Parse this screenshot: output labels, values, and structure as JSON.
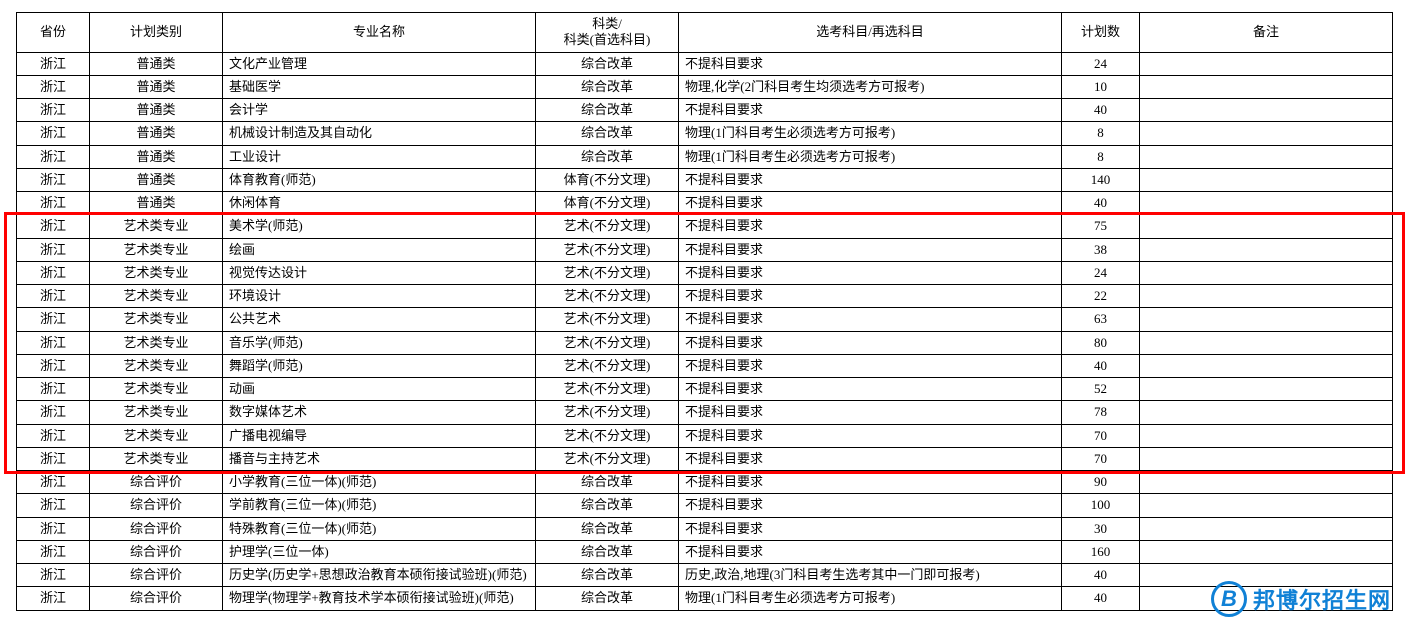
{
  "headers": {
    "province": "省份",
    "plan_type": "计划类别",
    "major": "专业名称",
    "subject": "科类/\n科类(首选科目)",
    "requirement": "选考科目/再选科目",
    "count": "计划数",
    "note": "备注"
  },
  "rows": [
    {
      "province": "浙江",
      "plan_type": "普通类",
      "major": "文化产业管理",
      "subject": "综合改革",
      "requirement": "不提科目要求",
      "count": "24",
      "note": ""
    },
    {
      "province": "浙江",
      "plan_type": "普通类",
      "major": "基础医学",
      "subject": "综合改革",
      "requirement": "物理,化学(2门科目考生均须选考方可报考)",
      "count": "10",
      "note": ""
    },
    {
      "province": "浙江",
      "plan_type": "普通类",
      "major": "会计学",
      "subject": "综合改革",
      "requirement": "不提科目要求",
      "count": "40",
      "note": ""
    },
    {
      "province": "浙江",
      "plan_type": "普通类",
      "major": "机械设计制造及其自动化",
      "subject": "综合改革",
      "requirement": "物理(1门科目考生必须选考方可报考)",
      "count": "8",
      "note": ""
    },
    {
      "province": "浙江",
      "plan_type": "普通类",
      "major": "工业设计",
      "subject": "综合改革",
      "requirement": "物理(1门科目考生必须选考方可报考)",
      "count": "8",
      "note": ""
    },
    {
      "province": "浙江",
      "plan_type": "普通类",
      "major": "体育教育(师范)",
      "subject": "体育(不分文理)",
      "requirement": "不提科目要求",
      "count": "140",
      "note": ""
    },
    {
      "province": "浙江",
      "plan_type": "普通类",
      "major": "休闲体育",
      "subject": "体育(不分文理)",
      "requirement": "不提科目要求",
      "count": "40",
      "note": ""
    },
    {
      "province": "浙江",
      "plan_type": "艺术类专业",
      "major": "美术学(师范)",
      "subject": "艺术(不分文理)",
      "requirement": "不提科目要求",
      "count": "75",
      "note": ""
    },
    {
      "province": "浙江",
      "plan_type": "艺术类专业",
      "major": "绘画",
      "subject": "艺术(不分文理)",
      "requirement": "不提科目要求",
      "count": "38",
      "note": ""
    },
    {
      "province": "浙江",
      "plan_type": "艺术类专业",
      "major": "视觉传达设计",
      "subject": "艺术(不分文理)",
      "requirement": "不提科目要求",
      "count": "24",
      "note": ""
    },
    {
      "province": "浙江",
      "plan_type": "艺术类专业",
      "major": "环境设计",
      "subject": "艺术(不分文理)",
      "requirement": "不提科目要求",
      "count": "22",
      "note": ""
    },
    {
      "province": "浙江",
      "plan_type": "艺术类专业",
      "major": "公共艺术",
      "subject": "艺术(不分文理)",
      "requirement": "不提科目要求",
      "count": "63",
      "note": ""
    },
    {
      "province": "浙江",
      "plan_type": "艺术类专业",
      "major": "音乐学(师范)",
      "subject": "艺术(不分文理)",
      "requirement": "不提科目要求",
      "count": "80",
      "note": ""
    },
    {
      "province": "浙江",
      "plan_type": "艺术类专业",
      "major": "舞蹈学(师范)",
      "subject": "艺术(不分文理)",
      "requirement": "不提科目要求",
      "count": "40",
      "note": ""
    },
    {
      "province": "浙江",
      "plan_type": "艺术类专业",
      "major": "动画",
      "subject": "艺术(不分文理)",
      "requirement": "不提科目要求",
      "count": "52",
      "note": ""
    },
    {
      "province": "浙江",
      "plan_type": "艺术类专业",
      "major": "数字媒体艺术",
      "subject": "艺术(不分文理)",
      "requirement": "不提科目要求",
      "count": "78",
      "note": ""
    },
    {
      "province": "浙江",
      "plan_type": "艺术类专业",
      "major": "广播电视编导",
      "subject": "艺术(不分文理)",
      "requirement": "不提科目要求",
      "count": "70",
      "note": ""
    },
    {
      "province": "浙江",
      "plan_type": "艺术类专业",
      "major": "播音与主持艺术",
      "subject": "艺术(不分文理)",
      "requirement": "不提科目要求",
      "count": "70",
      "note": ""
    },
    {
      "province": "浙江",
      "plan_type": "综合评价",
      "major": "小学教育(三位一体)(师范)",
      "subject": "综合改革",
      "requirement": "不提科目要求",
      "count": "90",
      "note": ""
    },
    {
      "province": "浙江",
      "plan_type": "综合评价",
      "major": "学前教育(三位一体)(师范)",
      "subject": "综合改革",
      "requirement": "不提科目要求",
      "count": "100",
      "note": ""
    },
    {
      "province": "浙江",
      "plan_type": "综合评价",
      "major": "特殊教育(三位一体)(师范)",
      "subject": "综合改革",
      "requirement": "不提科目要求",
      "count": "30",
      "note": ""
    },
    {
      "province": "浙江",
      "plan_type": "综合评价",
      "major": "护理学(三位一体)",
      "subject": "综合改革",
      "requirement": "不提科目要求",
      "count": "160",
      "note": ""
    },
    {
      "province": "浙江",
      "plan_type": "综合评价",
      "major": "历史学(历史学+思想政治教育本硕衔接试验班)(师范)",
      "subject": "综合改革",
      "requirement": "历史,政治,地理(3门科目考生选考其中一门即可报考)",
      "count": "40",
      "note": ""
    },
    {
      "province": "浙江",
      "plan_type": "综合评价",
      "major": "物理学(物理学+教育技术学本硕衔接试验班)(师范)",
      "subject": "综合改革",
      "requirement": "物理(1门科目考生必须选考方可报考)",
      "count": "40",
      "note": ""
    }
  ],
  "highlight": {
    "start_row_index": 7,
    "end_row_index": 17,
    "color": "#ff0000"
  },
  "watermark": {
    "circle_letter": "B",
    "text": "邦博尔招生网",
    "color": "#1081d6"
  }
}
